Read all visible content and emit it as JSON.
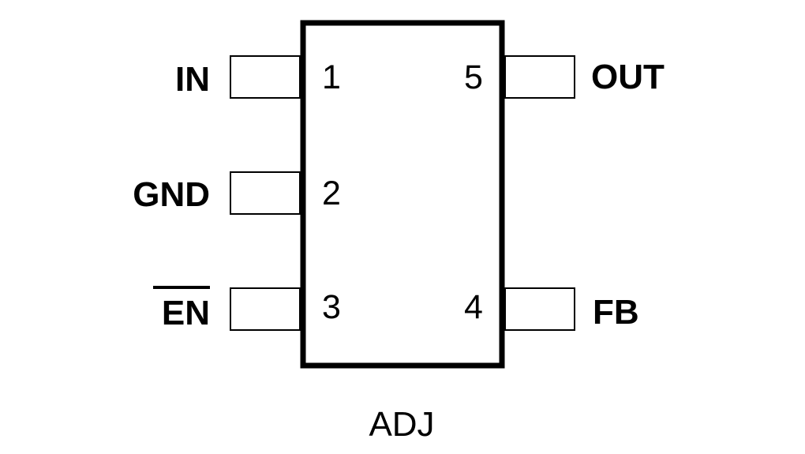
{
  "package": {
    "name": "ADJ"
  },
  "pins": [
    {
      "number": "1",
      "label": "IN",
      "overbar": false,
      "side": "left"
    },
    {
      "number": "2",
      "label": "GND",
      "overbar": false,
      "side": "left"
    },
    {
      "number": "3",
      "label": "EN",
      "overbar": true,
      "side": "left"
    },
    {
      "number": "4",
      "label": "FB",
      "overbar": false,
      "side": "right"
    },
    {
      "number": "5",
      "label": "OUT",
      "overbar": false,
      "side": "right"
    }
  ],
  "colors": {
    "stroke": "#000000",
    "background": "#ffffff"
  }
}
